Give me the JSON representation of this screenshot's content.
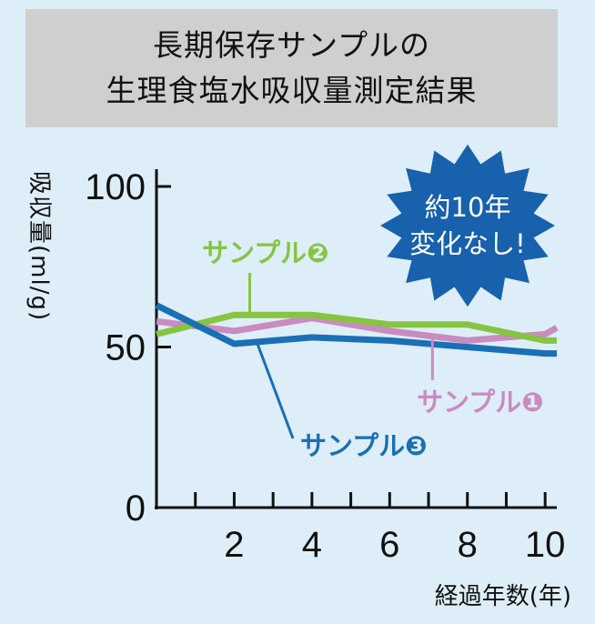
{
  "chart_data": {
    "type": "line",
    "title_lines": [
      "長期保存サンプルの",
      "生理食塩水吸収量測定結果"
    ],
    "xlabel": "経過年数(年)",
    "ylabel": "吸収量(ml/g)",
    "xlim": [
      0,
      10.3
    ],
    "ylim": [
      0,
      100
    ],
    "x_ticks": [
      2,
      4,
      6,
      8,
      10
    ],
    "y_ticks": [
      0,
      50,
      100
    ],
    "x": [
      0,
      2,
      4,
      6,
      8,
      10,
      10.3
    ],
    "series": [
      {
        "name": "サンプル❶",
        "color": "#c98bc0",
        "values": [
          58,
          55,
          59,
          55,
          52,
          54,
          56
        ]
      },
      {
        "name": "サンプル❷",
        "color": "#86c442",
        "values": [
          54,
          60,
          60,
          57,
          57,
          52,
          52
        ]
      },
      {
        "name": "サンプル❸",
        "color": "#1a6fb5",
        "values": [
          63,
          51,
          53,
          52,
          50,
          48,
          48
        ]
      }
    ],
    "annotation": [
      "約10年",
      "変化なし!"
    ],
    "colors": {
      "badge": "#1861ad",
      "axis": "#111111",
      "background": "#ddeef8"
    }
  }
}
